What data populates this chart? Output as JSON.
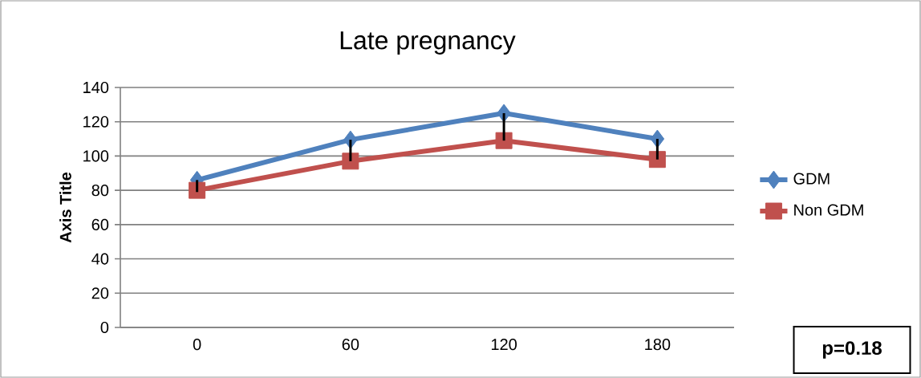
{
  "chart_data": {
    "type": "line",
    "title": "Late pregnancy",
    "ylabel": "Axis Title",
    "categories": [
      "0",
      "60",
      "120",
      "180"
    ],
    "series": [
      {
        "name": "GDM",
        "color": "#4f81bd",
        "marker": "diamond",
        "values": [
          86,
          109.5,
          125,
          110
        ],
        "errors": [
          [
            79,
            86
          ],
          [
            97,
            109.5
          ],
          [
            109,
            125
          ],
          [
            98,
            110
          ]
        ]
      },
      {
        "name": "Non GDM",
        "color": "#c0504d",
        "marker": "square",
        "values": [
          80,
          97,
          109,
          98
        ]
      }
    ],
    "ylim": [
      0,
      140
    ],
    "yticks": [
      0,
      20,
      40,
      60,
      80,
      100,
      120,
      140
    ],
    "grid": "y",
    "legend": "right",
    "annotations": [
      "p=0.18"
    ]
  }
}
